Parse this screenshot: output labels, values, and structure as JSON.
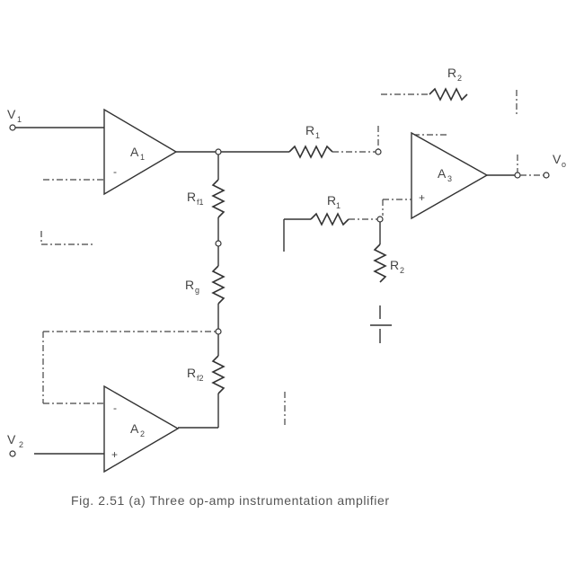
{
  "figure": {
    "caption": "Fig. 2.51 (a) Three op-amp instrumentation amplifier",
    "inputs": {
      "v1": "V",
      "v1_sub": "1",
      "v2": "V",
      "v2_sub": "2",
      "vo": "V",
      "vo_sub": "o"
    },
    "amplifiers": {
      "a1": "A",
      "a1_sub": "1",
      "a2": "A",
      "a2_sub": "2",
      "a3": "A",
      "a3_sub": "3"
    },
    "amp_signs": {
      "plus": "+",
      "minus": "-"
    },
    "resistors": {
      "r2_top": "R",
      "r2_top_sub": "2",
      "r1_upper": "R",
      "r1_upper_sub": "1",
      "r1_lower": "R",
      "r1_lower_sub": "1",
      "r2_ground": "R",
      "r2_ground_sub": "2",
      "rf1": "R",
      "rf1_sub": "f1",
      "rg": "R",
      "rg_sub": "g",
      "rf2": "R",
      "rf2_sub": "f2"
    }
  }
}
